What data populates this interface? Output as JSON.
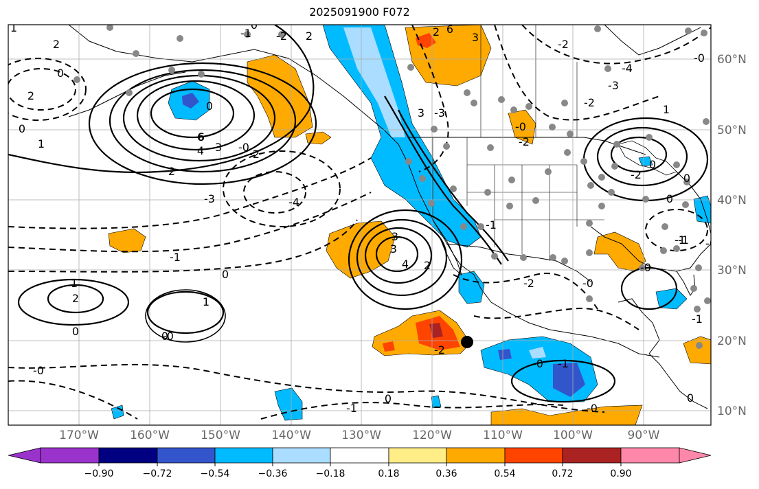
{
  "title": "2025091900 F072",
  "lon_ticks": [
    "170°W",
    "160°W",
    "150°W",
    "140°W",
    "130°W",
    "120°W",
    "110°W",
    "100°W",
    "90°W"
  ],
  "lat_ticks": [
    "60°N",
    "50°N",
    "40°N",
    "30°N",
    "20°N",
    "10°N"
  ],
  "colorbar": {
    "ticks": [
      "−0.90",
      "−0.72",
      "−0.54",
      "−0.36",
      "−0.18",
      "0.18",
      "0.36",
      "0.54",
      "0.72",
      "0.90"
    ],
    "colors": [
      "#9933cc",
      "#000080",
      "#3355cc",
      "#00bbff",
      "#aaddff",
      "#ffffff",
      "#ffee88",
      "#ffaa00",
      "#ff4400",
      "#aa2222",
      "#ff88aa"
    ]
  },
  "contour_labels": [
    "1",
    "2",
    "0",
    "2",
    "0",
    "-2",
    "2",
    "-1",
    "-2",
    "6",
    "6",
    "2",
    "3",
    "-4",
    "-3",
    "-2",
    "3",
    "6",
    "4",
    "3",
    "2",
    "0",
    "-0",
    "-2",
    "-3",
    "0",
    "0",
    "3",
    "-3",
    "-4",
    "-1",
    "-2",
    "0",
    "-2",
    "4",
    "3",
    "2",
    "-2",
    "1",
    "2",
    "1",
    "-1",
    "0",
    "-0",
    "-0",
    "-1",
    "-2",
    "0",
    "-0",
    "-1",
    "-0",
    "1",
    "0",
    "-1",
    "0",
    "-0",
    "-0",
    "-1",
    "-0",
    "0",
    "-1",
    "1",
    "-0",
    "-0",
    "0"
  ],
  "marker": {
    "label": "storm-center"
  }
}
